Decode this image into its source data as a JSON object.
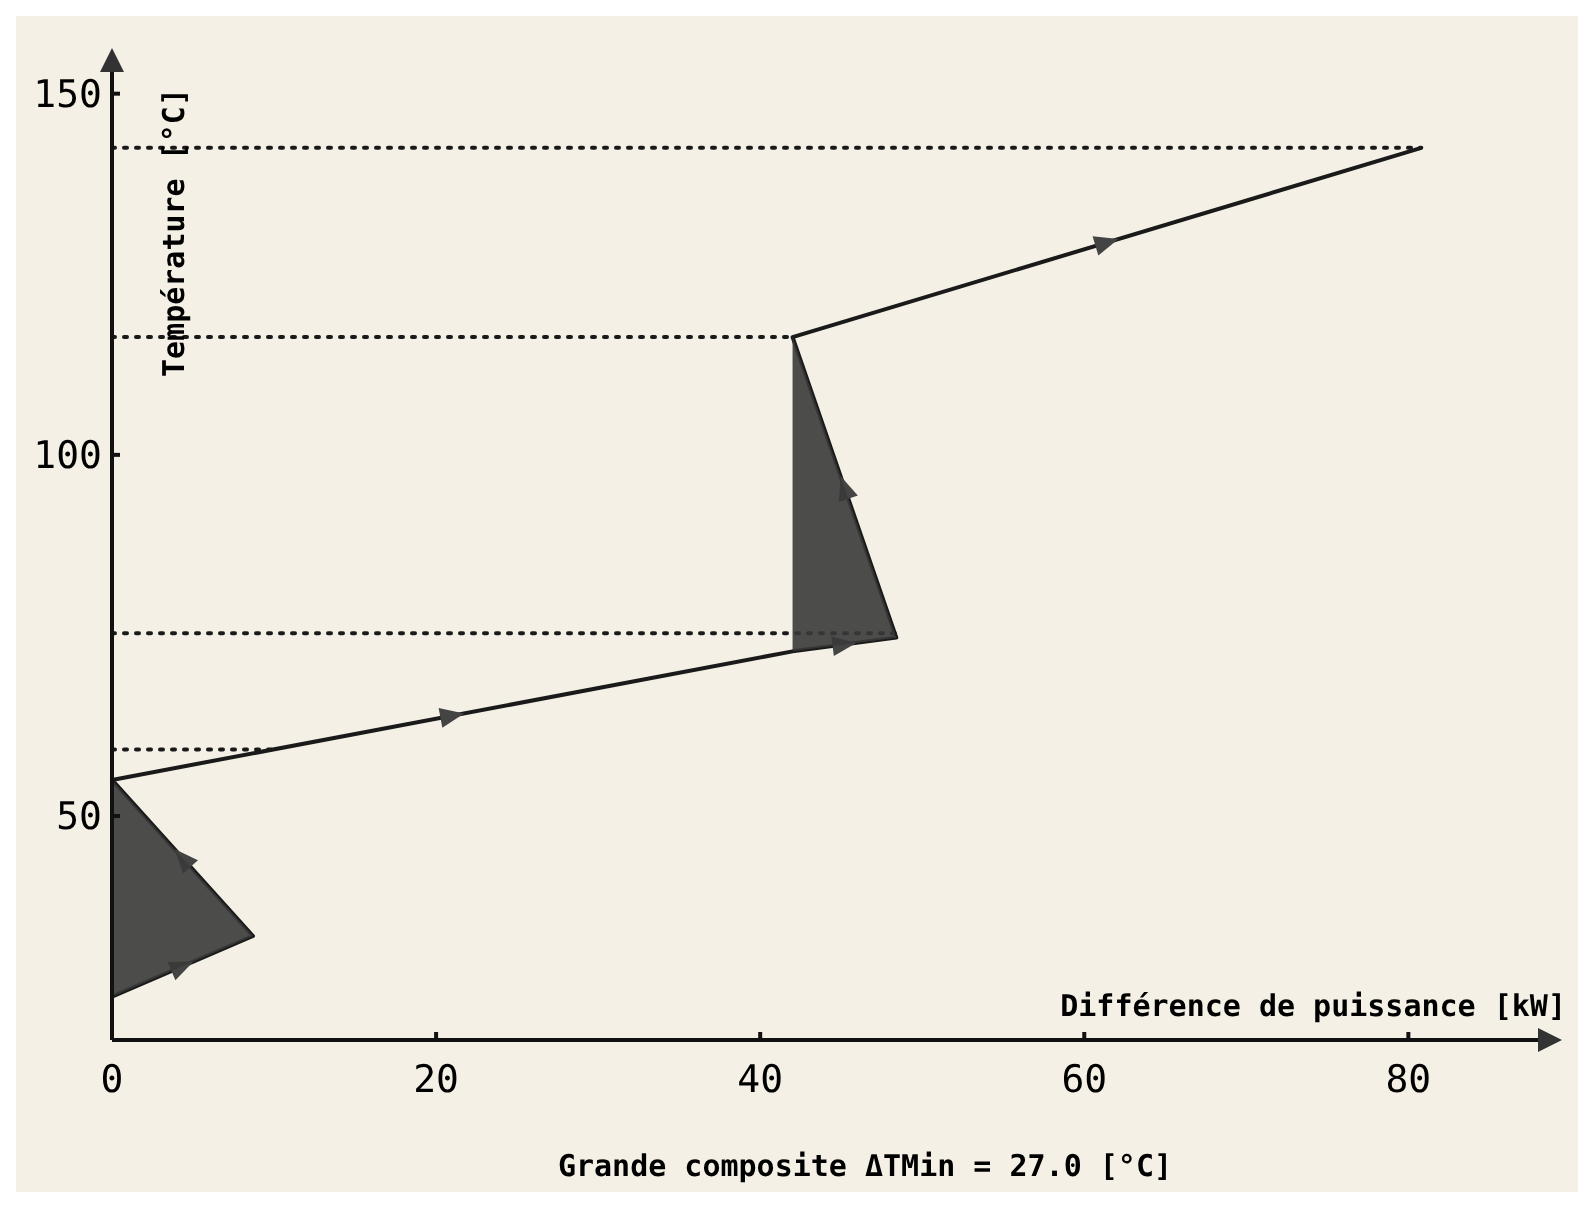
{
  "chart_data": {
    "type": "line",
    "title": "Grande composite ΔTMin = 27.0 [°C]",
    "xlabel": "Différence de puissance [kW]",
    "ylabel": "Température [°C]",
    "xlim": [
      0,
      88
    ],
    "ylim": [
      19,
      153
    ],
    "xticks": [
      0,
      20,
      40,
      60,
      80
    ],
    "yticks": [
      50,
      100,
      150
    ],
    "grid": false,
    "marker": "none",
    "line_style": "solid",
    "series": [
      {
        "color": "#1a1a1a",
        "x": [
          0,
          8.7,
          0,
          42,
          48.4,
          42,
          80.8
        ],
        "values": [
          25,
          33.4,
          55,
          72.8,
          74.7,
          116.3,
          142.5
        ]
      },
      {
        "type": "area",
        "color": "#3a3a3a",
        "x": [
          0,
          8.7,
          0
        ],
        "values": [
          25,
          33.4,
          55
        ]
      },
      {
        "type": "area",
        "color": "#3a3a3a",
        "x": [
          42,
          48.4,
          42
        ],
        "values": [
          72.8,
          74.7,
          116.3
        ]
      }
    ],
    "ref_lines": [
      {
        "axis": "y",
        "value": 142.5,
        "line_style": "dotted",
        "color": "#1a1a1a"
      },
      {
        "axis": "y",
        "value": 116.3,
        "line_style": "dotted",
        "color": "#1a1a1a"
      },
      {
        "axis": "y",
        "value": 75.3,
        "line_style": "dotted",
        "color": "#1a1a1a"
      },
      {
        "axis": "y",
        "value": 59.2,
        "line_style": "dotted",
        "color": "#1a1a1a"
      }
    ]
  }
}
